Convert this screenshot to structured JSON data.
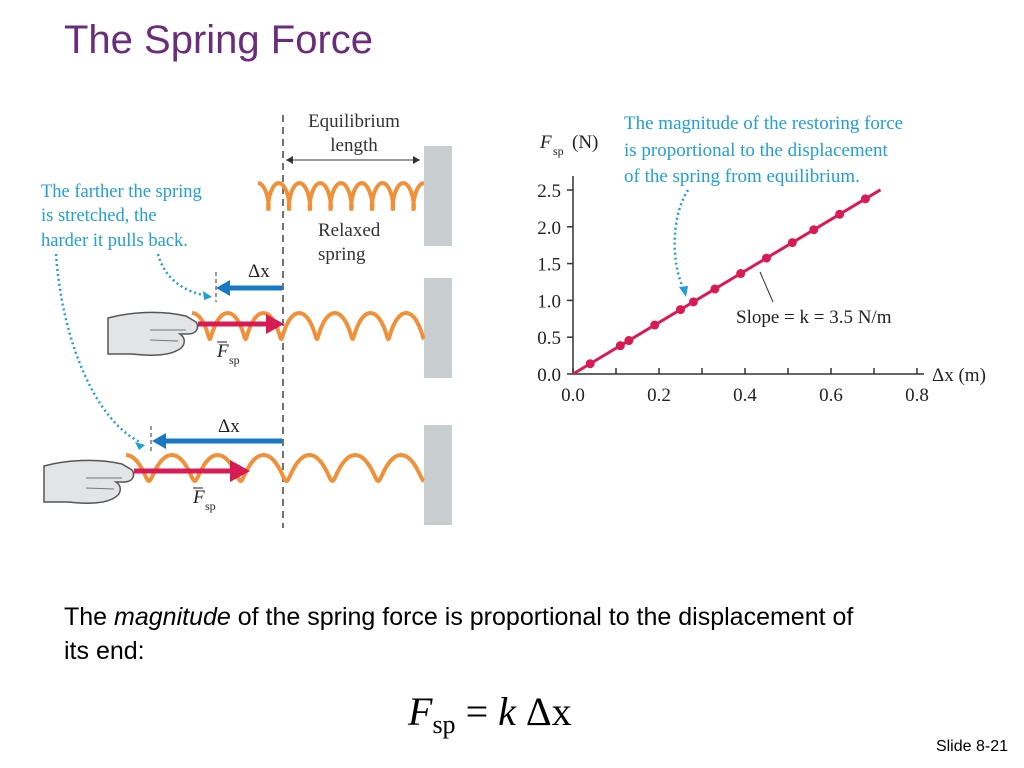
{
  "title": "The Spring Force",
  "figure": {
    "equilibrium_label_1": "Equilibrium",
    "equilibrium_label_2": "length",
    "relaxed_label_1": "Relaxed",
    "relaxed_label_2": "spring",
    "farther_note": [
      "The farther the spring",
      "is stretched, the",
      "harder it pulls back."
    ],
    "delta_x": "Δx",
    "fsp_letter": "F",
    "fsp_sub": "sp",
    "graph_note": [
      "The magnitude of the restoring force",
      "is proportional to the displacement",
      "of the spring from equilibrium."
    ],
    "slope_label": "Slope = k = 3.5 N/m",
    "colors": {
      "cyan": "#1f9fd6",
      "magenta": "#d81b55",
      "blue_arrow": "#1a78c2",
      "spring": "#f0913a",
      "wall": "#c8cdd0",
      "purple_title": "#6b2d7b"
    }
  },
  "chart_data": {
    "type": "line",
    "ylabel_main": "F",
    "ylabel_sub": "sp",
    "ylabel_unit": "(N)",
    "xlabel": "Δx (m)",
    "x_ticks": [
      "0.0",
      "0.2",
      "0.4",
      "0.6",
      "0.8"
    ],
    "y_ticks": [
      "0.0",
      "0.5",
      "1.0",
      "1.5",
      "2.0",
      "2.5"
    ],
    "xlim": [
      0,
      0.82
    ],
    "ylim": [
      0,
      2.6
    ],
    "slope": 3.5,
    "line_x_range": [
      0,
      0.715
    ],
    "points_x": [
      0.04,
      0.11,
      0.13,
      0.19,
      0.25,
      0.28,
      0.33,
      0.39,
      0.45,
      0.51,
      0.56,
      0.62,
      0.68
    ]
  },
  "body": {
    "pre": "The ",
    "emph": "magnitude",
    "post": " of the spring force is proportional to the displacement of its end:"
  },
  "equation": {
    "f": "F",
    "sub": "sp",
    "rest": " = ",
    "k": "k",
    "dx": " Δx"
  },
  "slide_number": "Slide 8-21"
}
